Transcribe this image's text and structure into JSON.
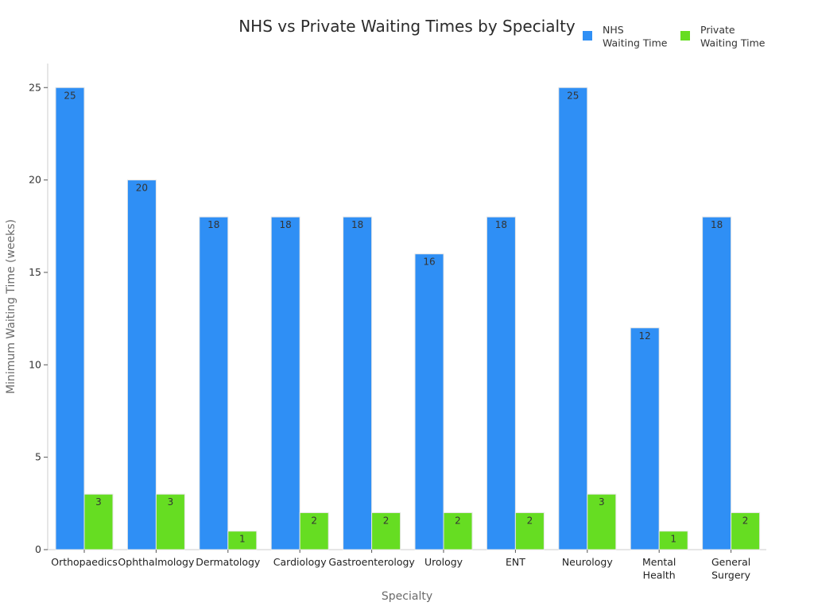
{
  "chart_data": {
    "type": "bar",
    "title": "NHS vs Private Waiting Times by Specialty",
    "xlabel": "Specialty",
    "ylabel": "Minimum Waiting Time (weeks)",
    "ylim": [
      0,
      26.3
    ],
    "yticks": [
      0,
      5,
      10,
      15,
      20,
      25
    ],
    "grid": false,
    "legend_position": "top-right",
    "categories": [
      [
        "Orthopaedics"
      ],
      [
        "Ophthalmology"
      ],
      [
        "Dermatology"
      ],
      [
        "Cardiology"
      ],
      [
        "Gastroenterology"
      ],
      [
        "Urology"
      ],
      [
        "ENT"
      ],
      [
        "Neurology"
      ],
      [
        "Mental",
        "Health"
      ],
      [
        "General",
        "Surgery"
      ]
    ],
    "series": [
      {
        "name": [
          "NHS",
          "Waiting Time"
        ],
        "color": "#2f8ff5",
        "values": [
          25,
          20,
          18,
          18,
          18,
          16,
          18,
          25,
          12,
          18
        ]
      },
      {
        "name": [
          "Private",
          "Waiting Time"
        ],
        "color": "#66dd22",
        "values": [
          3,
          3,
          1,
          2,
          2,
          2,
          2,
          3,
          1,
          2
        ]
      }
    ]
  }
}
